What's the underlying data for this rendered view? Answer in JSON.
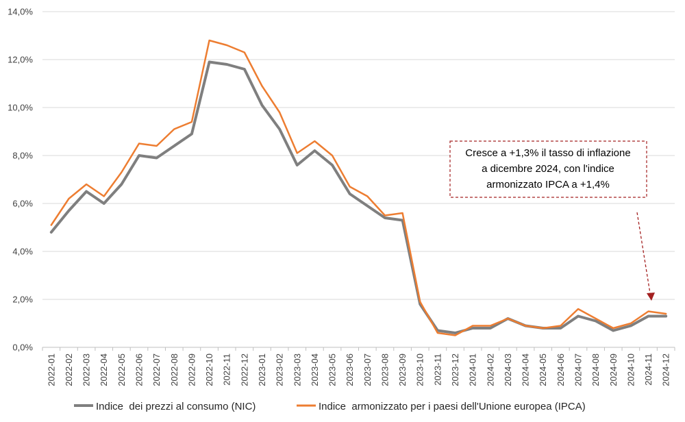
{
  "chart_data": {
    "type": "line",
    "title": "",
    "xlabel": "",
    "ylabel": "",
    "ylim": [
      0,
      14
    ],
    "y_ticks": [
      "0,0%",
      "2,0%",
      "4,0%",
      "6,0%",
      "8,0%",
      "10,0%",
      "12,0%",
      "14,0%"
    ],
    "grid": "horizontal",
    "legend_position": "bottom",
    "categories": [
      "2022-01",
      "2022-02",
      "2022-03",
      "2022-04",
      "2022-05",
      "2022-06",
      "2022-07",
      "2022-08",
      "2022-09",
      "2022-10",
      "2022-11",
      "2022-12",
      "2023-01",
      "2023-02",
      "2023-03",
      "2023-04",
      "2023-05",
      "2023-06",
      "2023-07",
      "2023-08",
      "2023-09",
      "2023-10",
      "2023-11",
      "2023-12",
      "2024-01",
      "2024-02",
      "2024-03",
      "2024-04",
      "2024-05",
      "2024-06",
      "2024-07",
      "2024-08",
      "2024-09",
      "2024-10",
      "2024-11",
      "2024-12"
    ],
    "series": [
      {
        "name": "Indice  dei prezzi al consumo (NIC)",
        "color": "#7f7f7f",
        "values": [
          4.8,
          5.7,
          6.5,
          6.0,
          6.8,
          8.0,
          7.9,
          8.4,
          8.9,
          11.9,
          11.8,
          11.6,
          10.1,
          9.1,
          7.6,
          8.2,
          7.6,
          6.4,
          5.9,
          5.4,
          5.3,
          1.8,
          0.7,
          0.6,
          0.8,
          0.8,
          1.2,
          0.9,
          0.8,
          0.8,
          1.3,
          1.1,
          0.7,
          0.9,
          1.3,
          1.3
        ]
      },
      {
        "name": "Indice  armonizzato per i paesi dell'Unione europea (IPCA)",
        "color": "#ed7d31",
        "values": [
          5.1,
          6.2,
          6.8,
          6.3,
          7.3,
          8.5,
          8.4,
          9.1,
          9.4,
          12.8,
          12.6,
          12.3,
          10.9,
          9.8,
          8.1,
          8.6,
          8.0,
          6.7,
          6.3,
          5.5,
          5.6,
          1.9,
          0.6,
          0.5,
          0.9,
          0.9,
          1.2,
          0.9,
          0.8,
          0.9,
          1.6,
          1.2,
          0.8,
          1.0,
          1.5,
          1.4
        ]
      }
    ],
    "annotation": {
      "lines": [
        "Cresce a +1,3% il tasso di inflazione",
        "a dicembre 2024, con l'indice",
        "armonizzato IPCA a +1,4%"
      ],
      "border_color": "#a32020",
      "arrow_color": "#a32020"
    }
  }
}
